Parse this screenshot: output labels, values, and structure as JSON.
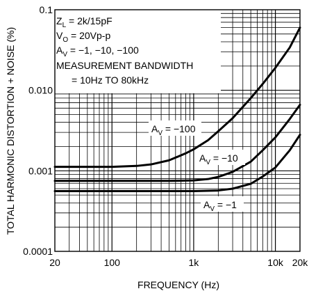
{
  "chart_data": {
    "type": "line",
    "xlabel": "FREQUENCY (Hz)",
    "ylabel": "TOTAL HARMONIC DISTORTION + NOISE (%)",
    "xscale": "log",
    "yscale": "log",
    "xlim": [
      20,
      20000
    ],
    "ylim": [
      0.0001,
      0.1
    ],
    "xticks": [
      {
        "value": 20,
        "label": "20"
      },
      {
        "value": 100,
        "label": "100"
      },
      {
        "value": 1000,
        "label": "1k"
      },
      {
        "value": 10000,
        "label": "10k"
      },
      {
        "value": 20000,
        "label": "20k"
      }
    ],
    "yticks": [
      {
        "value": 0.0001,
        "label": "0.0001"
      },
      {
        "value": 0.001,
        "label": "0.001"
      },
      {
        "value": 0.01,
        "label": "0.010"
      },
      {
        "value": 0.1,
        "label": "0.1"
      }
    ],
    "grid": true,
    "conditions": {
      "zl": {
        "main": "Z",
        "sub": "L",
        "rest": " = 2k/15pF"
      },
      "vo": {
        "main": "V",
        "sub": "O",
        "rest": " = 20Vp-p"
      },
      "av": {
        "main": "A",
        "sub": "V",
        "rest": " = −1, −10, −100"
      },
      "bw1": "MEASUREMENT BANDWIDTH",
      "bw2": "= 10Hz TO 80kHz"
    },
    "series": [
      {
        "label_main": "A",
        "label_sub": "V",
        "label_rest": " = −100",
        "x": [
          20,
          100,
          200,
          300,
          500,
          800,
          1000,
          1500,
          2000,
          3000,
          5000,
          7000,
          10000,
          15000,
          20000
        ],
        "y": [
          0.00112,
          0.00112,
          0.00115,
          0.0012,
          0.00135,
          0.00165,
          0.00185,
          0.0024,
          0.0031,
          0.0045,
          0.008,
          0.012,
          0.019,
          0.034,
          0.06
        ]
      },
      {
        "label_main": "A",
        "label_sub": "V",
        "label_rest": " = −10",
        "x": [
          20,
          100,
          500,
          1000,
          1500,
          2000,
          3000,
          5000,
          7000,
          10000,
          15000,
          20000
        ],
        "y": [
          0.00075,
          0.00075,
          0.00075,
          0.00076,
          0.00079,
          0.00084,
          0.00097,
          0.0013,
          0.0018,
          0.0026,
          0.0044,
          0.0066
        ]
      },
      {
        "label_main": "A",
        "label_sub": "V",
        "label_rest": " = −1",
        "x": [
          20,
          100,
          1000,
          2000,
          3000,
          5000,
          7000,
          10000,
          15000,
          20000
        ],
        "y": [
          0.00056,
          0.00056,
          0.00056,
          0.00057,
          0.0006,
          0.00069,
          0.00085,
          0.0011,
          0.0018,
          0.0028
        ]
      }
    ]
  }
}
